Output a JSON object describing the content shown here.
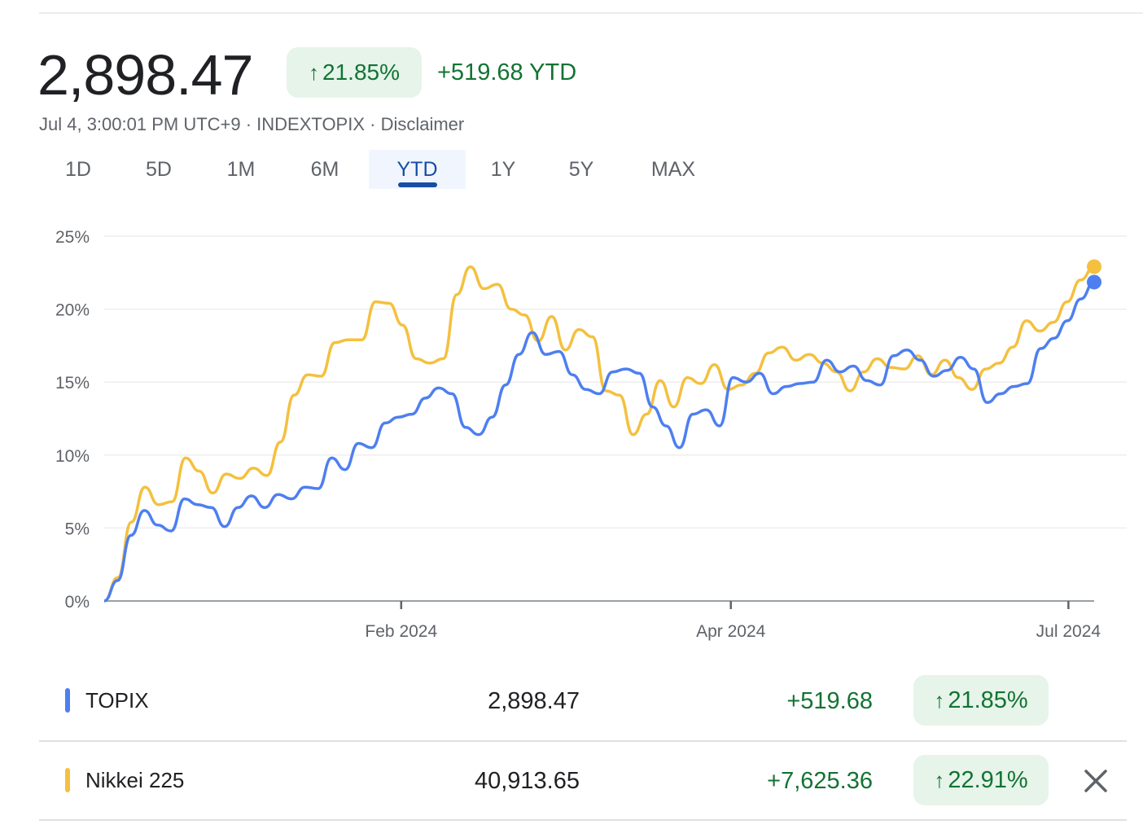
{
  "header": {
    "price": "2,898.47",
    "change_percent": "21.85%",
    "change_value": "+519.68 YTD",
    "meta": "Jul 4, 3:00:01 PM UTC+9 · INDEXTOPIX · Disclaimer"
  },
  "tabs": [
    {
      "label": "1D"
    },
    {
      "label": "5D"
    },
    {
      "label": "1M"
    },
    {
      "label": "6M"
    },
    {
      "label": "YTD"
    },
    {
      "label": "1Y"
    },
    {
      "label": "5Y"
    },
    {
      "label": "MAX"
    }
  ],
  "active_tab": "YTD",
  "colors": {
    "topix": "#4e7ff0",
    "nikkei": "#f4c03e",
    "positive": "#137333",
    "positive_bg": "#e6f4ea",
    "accent": "#174ea6"
  },
  "chart_data": {
    "type": "line",
    "title": "",
    "xlabel": "",
    "ylabel": "",
    "ylim": [
      0,
      25
    ],
    "yticks": [
      "0%",
      "5%",
      "10%",
      "15%",
      "20%",
      "25%"
    ],
    "xticks": [
      "Feb 2024",
      "Apr 2024",
      "Jul 2024"
    ],
    "grid": true,
    "series": [
      {
        "name": "TOPIX",
        "color": "#4e7ff0",
        "values": [
          0.0,
          1.4,
          4.5,
          6.2,
          5.2,
          4.8,
          7.0,
          6.6,
          6.4,
          5.1,
          6.4,
          7.2,
          6.4,
          7.3,
          7.0,
          7.8,
          7.7,
          9.8,
          9.0,
          10.8,
          10.5,
          12.2,
          12.6,
          12.8,
          13.9,
          14.6,
          14.2,
          11.9,
          11.4,
          12.6,
          14.8,
          16.9,
          18.4,
          16.9,
          17.1,
          15.5,
          14.5,
          14.2,
          15.7,
          15.9,
          15.6,
          13.3,
          12.0,
          10.5,
          12.8,
          13.1,
          12.0,
          15.3,
          15.0,
          15.6,
          14.2,
          14.7,
          14.9,
          15.0,
          16.5,
          15.7,
          16.1,
          15.1,
          14.8,
          16.8,
          17.2,
          16.5,
          15.4,
          15.8,
          16.7,
          15.9,
          13.6,
          14.2,
          14.7,
          14.9,
          17.3,
          18.0,
          19.2,
          20.7,
          21.85
        ]
      },
      {
        "name": "Nikkei 225",
        "color": "#f4c03e",
        "values": [
          0.0,
          1.6,
          5.4,
          7.8,
          6.6,
          6.8,
          9.8,
          8.9,
          7.4,
          8.7,
          8.4,
          9.1,
          8.6,
          10.9,
          14.1,
          15.5,
          15.4,
          17.7,
          17.9,
          17.9,
          20.5,
          20.4,
          18.9,
          16.6,
          16.3,
          16.6,
          21.0,
          22.9,
          21.4,
          21.7,
          20.0,
          19.6,
          17.8,
          19.5,
          17.2,
          18.6,
          18.1,
          14.4,
          14.1,
          11.4,
          12.8,
          15.1,
          13.3,
          15.3,
          14.9,
          16.2,
          14.5,
          14.8,
          15.6,
          17.0,
          17.4,
          16.5,
          16.9,
          16.3,
          15.7,
          14.4,
          15.7,
          16.6,
          16.0,
          15.9,
          16.8,
          15.5,
          16.5,
          15.3,
          14.5,
          15.9,
          16.3,
          17.4,
          19.2,
          18.5,
          19.1,
          20.5,
          22.0,
          22.91
        ]
      }
    ]
  },
  "legend": {
    "rows": [
      {
        "name": "TOPIX",
        "value": "2,898.47",
        "change": "+519.68",
        "percent": "21.85%",
        "color": "#4e7ff0"
      },
      {
        "name": "Nikkei 225",
        "value": "40,913.65",
        "change": "+7,625.36",
        "percent": "22.91%",
        "color": "#f4c03e"
      }
    ],
    "close_icon": "close-icon"
  }
}
